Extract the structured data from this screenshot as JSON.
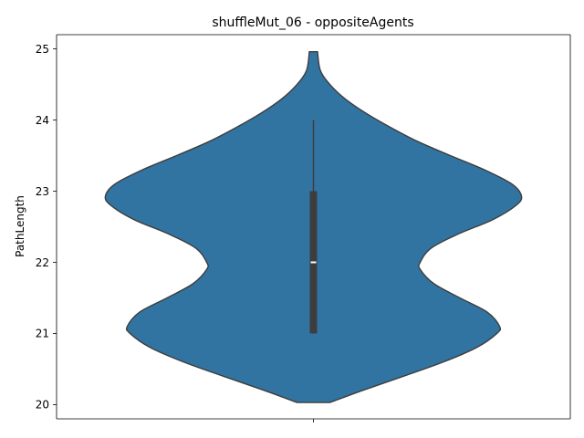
{
  "chart_data": {
    "type": "violin",
    "title": "shuffleMut_06 - oppositeAgents",
    "xlabel": "",
    "ylabel": "PathLength",
    "categories": [
      ""
    ],
    "ylim": [
      19.8,
      25.2
    ],
    "yticks": [
      20,
      21,
      22,
      23,
      24,
      25
    ],
    "grid": false,
    "violin_color": "#3274a1",
    "edge_color": "#3d3d3d",
    "density_profile": {
      "y": [
        20.03,
        20.2,
        20.4,
        20.6,
        20.8,
        21.0,
        21.1,
        21.3,
        21.5,
        21.7,
        21.9,
        22.0,
        22.2,
        22.4,
        22.6,
        22.8,
        22.93,
        23.1,
        23.3,
        23.5,
        23.7,
        23.9,
        24.1,
        24.3,
        24.5,
        24.7,
        24.96
      ],
      "halfwidth": [
        0.12,
        0.36,
        0.66,
        0.95,
        1.19,
        1.34,
        1.36,
        1.27,
        1.07,
        0.88,
        0.78,
        0.78,
        0.86,
        1.06,
        1.31,
        1.48,
        1.52,
        1.45,
        1.25,
        1.0,
        0.76,
        0.56,
        0.38,
        0.23,
        0.12,
        0.05,
        0.03
      ]
    },
    "box": {
      "min": 21,
      "q1": 21,
      "median": 22,
      "q3": 23,
      "max": 24
    }
  }
}
